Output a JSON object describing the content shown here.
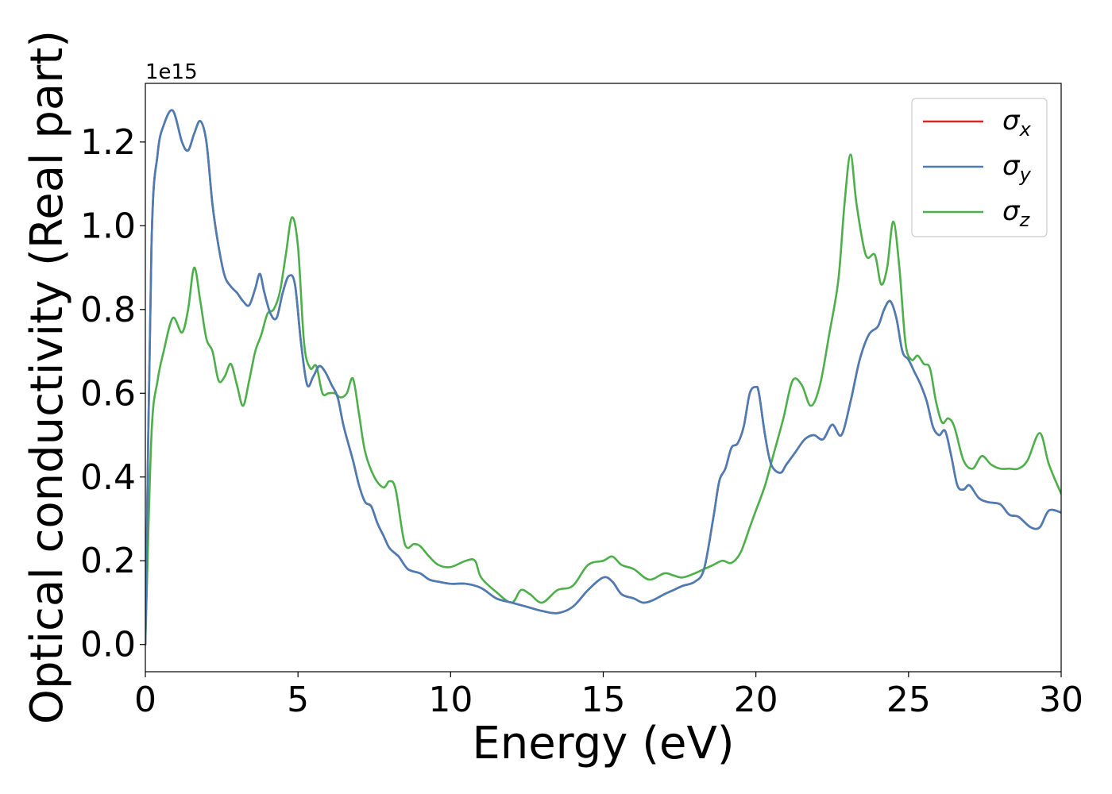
{
  "chart_data": {
    "type": "line",
    "xlabel": "Energy (eV)",
    "ylabel": "Optical conductivity (Real part)",
    "y_offset_label": "1e15",
    "xlim": [
      0,
      30
    ],
    "ylim": [
      -0.065,
      1.34
    ],
    "x_ticks": [
      0,
      5,
      10,
      15,
      20,
      25,
      30
    ],
    "y_ticks": [
      0.0,
      0.2,
      0.4,
      0.6,
      0.8,
      1.0,
      1.2
    ],
    "x_tick_labels": [
      "0",
      "5",
      "10",
      "15",
      "20",
      "25",
      "30"
    ],
    "y_tick_labels": [
      "0.0",
      "0.2",
      "0.4",
      "0.6",
      "0.8",
      "1.0",
      "1.2"
    ],
    "grid": false,
    "legend_position": "top-right",
    "series": [
      {
        "name": "σx",
        "legend_symbol": "σ",
        "legend_subscript": "x",
        "color": "#d62728",
        "x": [
          0,
          0.2,
          0.4,
          0.6,
          0.9,
          1.2,
          1.4,
          1.6,
          1.8,
          2.0,
          2.2,
          2.4,
          2.6,
          2.8,
          3.0,
          3.2,
          3.4,
          3.6,
          3.75,
          3.9,
          4.1,
          4.3,
          4.5,
          4.7,
          4.9,
          5.1,
          5.3,
          5.5,
          5.7,
          5.9,
          6.1,
          6.3,
          6.5,
          6.8,
          7.0,
          7.2,
          7.4,
          7.6,
          7.8,
          8.0,
          8.3,
          8.6,
          9.0,
          9.3,
          9.6,
          10.0,
          10.5,
          11.0,
          11.5,
          12.0,
          12.5,
          13.0,
          13.5,
          14.0,
          14.5,
          15.0,
          15.3,
          15.6,
          16.0,
          16.3,
          16.6,
          17.0,
          17.3,
          17.6,
          18.0,
          18.3,
          18.6,
          18.8,
          19.0,
          19.2,
          19.4,
          19.6,
          19.8,
          20.0,
          20.1,
          20.3,
          20.5,
          20.8,
          21.0,
          21.3,
          21.6,
          21.9,
          22.2,
          22.5,
          22.8,
          23.1,
          23.4,
          23.7,
          24.0,
          24.2,
          24.4,
          24.6,
          24.8,
          25.0,
          25.2,
          25.4,
          25.6,
          25.8,
          26.0,
          26.2,
          26.4,
          26.6,
          26.8,
          27.0,
          27.3,
          27.6,
          28.0,
          28.3,
          28.6,
          29.0,
          29.3,
          29.6,
          30.0
        ],
        "values": [
          0.0,
          0.95,
          1.17,
          1.24,
          1.275,
          1.2,
          1.18,
          1.22,
          1.25,
          1.2,
          1.05,
          0.95,
          0.88,
          0.855,
          0.84,
          0.82,
          0.81,
          0.85,
          0.885,
          0.84,
          0.79,
          0.78,
          0.84,
          0.88,
          0.86,
          0.72,
          0.62,
          0.64,
          0.665,
          0.65,
          0.62,
          0.59,
          0.52,
          0.44,
          0.38,
          0.34,
          0.33,
          0.29,
          0.26,
          0.23,
          0.21,
          0.18,
          0.17,
          0.155,
          0.15,
          0.145,
          0.145,
          0.135,
          0.11,
          0.1,
          0.09,
          0.08,
          0.075,
          0.09,
          0.13,
          0.16,
          0.15,
          0.12,
          0.11,
          0.1,
          0.105,
          0.12,
          0.13,
          0.14,
          0.15,
          0.18,
          0.3,
          0.39,
          0.42,
          0.47,
          0.48,
          0.52,
          0.6,
          0.615,
          0.6,
          0.5,
          0.43,
          0.41,
          0.43,
          0.46,
          0.49,
          0.5,
          0.49,
          0.525,
          0.5,
          0.58,
          0.68,
          0.74,
          0.76,
          0.8,
          0.82,
          0.78,
          0.7,
          0.68,
          0.65,
          0.62,
          0.58,
          0.52,
          0.5,
          0.51,
          0.45,
          0.38,
          0.37,
          0.38,
          0.35,
          0.34,
          0.335,
          0.31,
          0.305,
          0.28,
          0.28,
          0.32,
          0.315
        ]
      },
      {
        "name": "σy",
        "legend_symbol": "σ",
        "legend_subscript": "y",
        "color": "#4a7db5",
        "x": [
          0,
          0.2,
          0.4,
          0.6,
          0.9,
          1.2,
          1.4,
          1.6,
          1.8,
          2.0,
          2.2,
          2.4,
          2.6,
          2.8,
          3.0,
          3.2,
          3.4,
          3.6,
          3.75,
          3.9,
          4.1,
          4.3,
          4.5,
          4.7,
          4.9,
          5.1,
          5.3,
          5.5,
          5.7,
          5.9,
          6.1,
          6.3,
          6.5,
          6.8,
          7.0,
          7.2,
          7.4,
          7.6,
          7.8,
          8.0,
          8.3,
          8.6,
          9.0,
          9.3,
          9.6,
          10.0,
          10.5,
          11.0,
          11.5,
          12.0,
          12.5,
          13.0,
          13.5,
          14.0,
          14.5,
          15.0,
          15.3,
          15.6,
          16.0,
          16.3,
          16.6,
          17.0,
          17.3,
          17.6,
          18.0,
          18.3,
          18.6,
          18.8,
          19.0,
          19.2,
          19.4,
          19.6,
          19.8,
          20.0,
          20.1,
          20.3,
          20.5,
          20.8,
          21.0,
          21.3,
          21.6,
          21.9,
          22.2,
          22.5,
          22.8,
          23.1,
          23.4,
          23.7,
          24.0,
          24.2,
          24.4,
          24.6,
          24.8,
          25.0,
          25.2,
          25.4,
          25.6,
          25.8,
          26.0,
          26.2,
          26.4,
          26.6,
          26.8,
          27.0,
          27.3,
          27.6,
          28.0,
          28.3,
          28.6,
          29.0,
          29.3,
          29.6,
          30.0
        ],
        "values": [
          0.0,
          0.95,
          1.17,
          1.24,
          1.275,
          1.2,
          1.18,
          1.22,
          1.25,
          1.2,
          1.05,
          0.95,
          0.88,
          0.855,
          0.84,
          0.82,
          0.81,
          0.85,
          0.885,
          0.84,
          0.79,
          0.78,
          0.84,
          0.88,
          0.86,
          0.72,
          0.62,
          0.64,
          0.665,
          0.65,
          0.62,
          0.59,
          0.52,
          0.44,
          0.38,
          0.34,
          0.33,
          0.29,
          0.26,
          0.23,
          0.21,
          0.18,
          0.17,
          0.155,
          0.15,
          0.145,
          0.145,
          0.135,
          0.11,
          0.1,
          0.09,
          0.08,
          0.075,
          0.09,
          0.13,
          0.16,
          0.15,
          0.12,
          0.11,
          0.1,
          0.105,
          0.12,
          0.13,
          0.14,
          0.15,
          0.18,
          0.3,
          0.39,
          0.42,
          0.47,
          0.48,
          0.52,
          0.6,
          0.615,
          0.6,
          0.5,
          0.43,
          0.41,
          0.43,
          0.46,
          0.49,
          0.5,
          0.49,
          0.525,
          0.5,
          0.58,
          0.68,
          0.74,
          0.76,
          0.8,
          0.82,
          0.78,
          0.7,
          0.68,
          0.65,
          0.62,
          0.58,
          0.52,
          0.5,
          0.51,
          0.45,
          0.38,
          0.37,
          0.38,
          0.35,
          0.34,
          0.335,
          0.31,
          0.305,
          0.28,
          0.28,
          0.32,
          0.315
        ]
      },
      {
        "name": "σz",
        "legend_symbol": "σ",
        "legend_subscript": "z",
        "color": "#4daf4a",
        "x": [
          0,
          0.2,
          0.4,
          0.6,
          0.9,
          1.2,
          1.4,
          1.6,
          1.8,
          2.0,
          2.2,
          2.4,
          2.6,
          2.8,
          3.0,
          3.2,
          3.4,
          3.6,
          3.8,
          4.0,
          4.2,
          4.4,
          4.6,
          4.8,
          5.0,
          5.2,
          5.4,
          5.6,
          5.8,
          6.0,
          6.2,
          6.4,
          6.6,
          6.8,
          7.0,
          7.2,
          7.5,
          7.8,
          8.0,
          8.2,
          8.5,
          8.8,
          9.0,
          9.3,
          9.6,
          10.0,
          10.5,
          10.8,
          11.0,
          11.5,
          12.0,
          12.3,
          12.6,
          13.0,
          13.5,
          14.0,
          14.5,
          15.0,
          15.3,
          15.6,
          16.0,
          16.5,
          17.0,
          17.3,
          17.6,
          18.0,
          18.3,
          18.6,
          18.9,
          19.2,
          19.5,
          19.8,
          20.0,
          20.3,
          20.6,
          20.9,
          21.2,
          21.5,
          21.8,
          22.1,
          22.4,
          22.7,
          22.9,
          23.1,
          23.3,
          23.6,
          23.9,
          24.1,
          24.3,
          24.5,
          24.7,
          24.9,
          25.1,
          25.3,
          25.5,
          25.7,
          25.9,
          26.1,
          26.3,
          26.5,
          26.8,
          27.1,
          27.4,
          27.7,
          28.0,
          28.3,
          28.6,
          28.9,
          29.3,
          29.6,
          30.0
        ],
        "values": [
          0.0,
          0.5,
          0.63,
          0.7,
          0.78,
          0.745,
          0.8,
          0.9,
          0.82,
          0.73,
          0.7,
          0.63,
          0.64,
          0.67,
          0.62,
          0.57,
          0.63,
          0.7,
          0.74,
          0.79,
          0.8,
          0.84,
          0.93,
          1.02,
          0.95,
          0.72,
          0.66,
          0.665,
          0.6,
          0.6,
          0.6,
          0.59,
          0.6,
          0.635,
          0.55,
          0.46,
          0.4,
          0.375,
          0.39,
          0.37,
          0.24,
          0.24,
          0.235,
          0.21,
          0.19,
          0.185,
          0.2,
          0.2,
          0.16,
          0.125,
          0.1,
          0.13,
          0.12,
          0.1,
          0.13,
          0.14,
          0.19,
          0.2,
          0.21,
          0.19,
          0.18,
          0.155,
          0.17,
          0.165,
          0.16,
          0.17,
          0.18,
          0.19,
          0.2,
          0.195,
          0.22,
          0.28,
          0.32,
          0.38,
          0.46,
          0.54,
          0.63,
          0.62,
          0.57,
          0.62,
          0.74,
          0.87,
          1.05,
          1.17,
          1.05,
          0.93,
          0.93,
          0.86,
          0.9,
          1.01,
          0.9,
          0.72,
          0.68,
          0.69,
          0.67,
          0.66,
          0.58,
          0.53,
          0.54,
          0.52,
          0.44,
          0.42,
          0.45,
          0.43,
          0.42,
          0.42,
          0.42,
          0.44,
          0.505,
          0.43,
          0.36
        ]
      }
    ]
  }
}
